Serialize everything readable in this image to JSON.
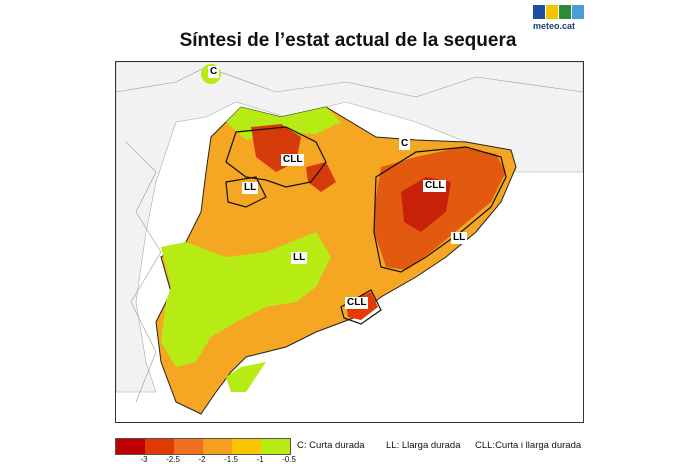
{
  "title": "Síntesi de l’estat actual de la sequera",
  "logo": {
    "text": "meteo.cat",
    "colors": [
      "#1f4e9c",
      "#f2c500",
      "#2e8b3a",
      "#4a9fd8"
    ]
  },
  "labels": [
    {
      "id": "c-north",
      "text": "C"
    },
    {
      "id": "cll-west",
      "text": "CLL"
    },
    {
      "id": "ll-west",
      "text": "LL"
    },
    {
      "id": "c-east",
      "text": "C"
    },
    {
      "id": "cll-east",
      "text": "CLL"
    },
    {
      "id": "ll-center",
      "text": "LL"
    },
    {
      "id": "ll-east",
      "text": "LL"
    },
    {
      "id": "cll-south",
      "text": "CLL"
    }
  ],
  "legend": {
    "colors": [
      "#c00000",
      "#e03a00",
      "#f07020",
      "#f6a020",
      "#f9c400",
      "#b6ec14"
    ],
    "ticks": [
      "-3",
      "-2.5",
      "-2",
      "-1.5",
      "-1",
      "-0.5"
    ],
    "notes": [
      "C: Curta durada",
      "LL: Llarga durada",
      "CLL:Curta i llarga durada"
    ]
  }
}
